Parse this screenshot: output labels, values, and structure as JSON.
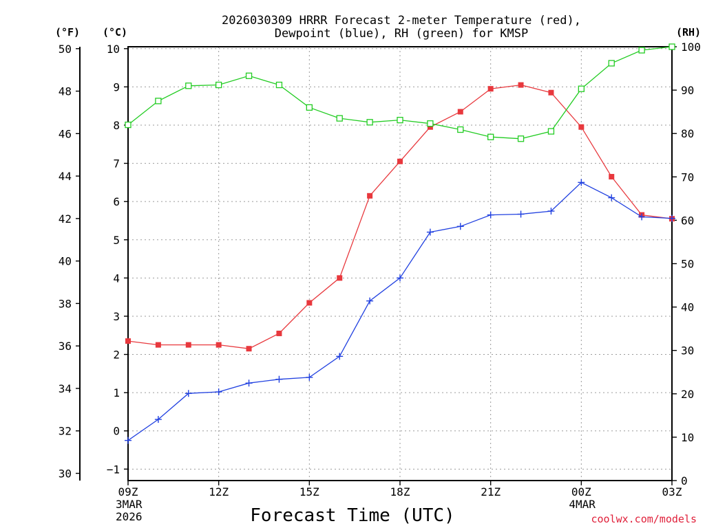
{
  "chart_data": {
    "type": "line",
    "title_line1": "2026030309 HRRR Forecast 2-meter Temperature (red),",
    "title_line2": "Dewpoint (blue), RH (green) for KMSP",
    "xlabel": "Forecast Time (UTC)",
    "credit": "coolwx.com/models",
    "left_axis_unit": "(°F)",
    "mid_axis_unit": "(°C)",
    "right_axis_unit": "(RH)",
    "x_hours": [
      0,
      1,
      2,
      3,
      4,
      5,
      6,
      7,
      8,
      9,
      10,
      11,
      12,
      13,
      14,
      15,
      16,
      17,
      18
    ],
    "x_ticks": [
      {
        "hour": 0,
        "label": "09Z",
        "sub1": "3MAR",
        "sub2": "2026"
      },
      {
        "hour": 3,
        "label": "12Z",
        "sub1": "",
        "sub2": ""
      },
      {
        "hour": 6,
        "label": "15Z",
        "sub1": "",
        "sub2": ""
      },
      {
        "hour": 9,
        "label": "18Z",
        "sub1": "",
        "sub2": ""
      },
      {
        "hour": 12,
        "label": "21Z",
        "sub1": "",
        "sub2": ""
      },
      {
        "hour": 15,
        "label": "00Z",
        "sub1": "4MAR",
        "sub2": ""
      },
      {
        "hour": 18,
        "label": "03Z",
        "sub1": "",
        "sub2": ""
      }
    ],
    "xlim": [
      0,
      18
    ],
    "celsius_range": [
      -1.3,
      10.05
    ],
    "fahrenheit_ticks": [
      "30",
      "32",
      "34",
      "36",
      "38",
      "40",
      "42",
      "44",
      "46",
      "48",
      "50"
    ],
    "celsius_ticks": [
      "−1",
      "0",
      "1",
      "2",
      "3",
      "4",
      "5",
      "6",
      "7",
      "8",
      "9",
      "10"
    ],
    "rh_ticks": [
      "0",
      "10",
      "20",
      "30",
      "40",
      "50",
      "60",
      "70",
      "80",
      "90",
      "100"
    ],
    "rh_range": [
      0,
      100
    ],
    "series": [
      {
        "name": "Temperature",
        "unit": "C",
        "color": "#e8383d",
        "marker": "filled-square",
        "values": [
          2.35,
          2.25,
          2.25,
          2.25,
          2.15,
          2.55,
          3.35,
          4.0,
          6.15,
          7.05,
          7.95,
          8.35,
          8.95,
          9.05,
          8.85,
          7.95,
          6.65,
          5.65,
          5.55
        ]
      },
      {
        "name": "Dewpoint",
        "unit": "C",
        "color": "#2040e0",
        "marker": "plus",
        "values": [
          -0.25,
          0.3,
          0.98,
          1.02,
          1.25,
          1.35,
          1.4,
          1.95,
          3.4,
          4.0,
          5.2,
          5.35,
          5.65,
          5.67,
          5.75,
          6.5,
          6.1,
          5.6,
          5.56
        ]
      },
      {
        "name": "RH",
        "unit": "%",
        "color": "#22cc22",
        "marker": "open-square",
        "values": [
          82,
          87.5,
          91,
          91.2,
          93.3,
          91.2,
          86,
          83.5,
          82.6,
          83.1,
          82.3,
          80.9,
          79.2,
          78.8,
          80.5,
          90.3,
          96.2,
          99.2,
          100
        ]
      }
    ]
  }
}
